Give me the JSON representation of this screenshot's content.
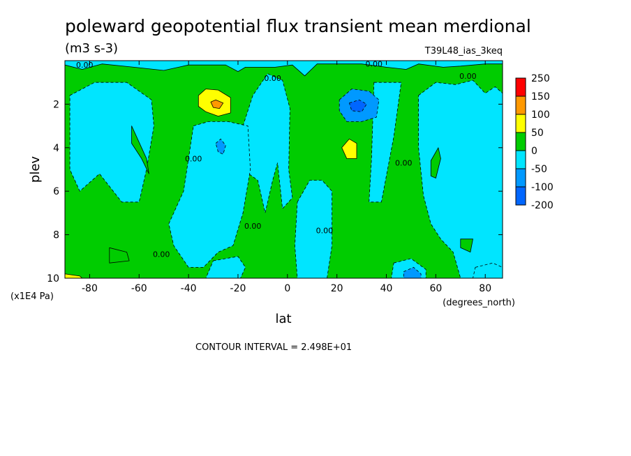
{
  "chart_data": {
    "type": "heatmap",
    "title": "poleward geopotential flux transient mean merdional",
    "units": "(m3 s-3)",
    "dataset": "T39L48_ias_3keq",
    "xlabel": "lat",
    "xunits": "(degrees_north)",
    "ylabel": "plev",
    "yunits": "(x1E4 Pa)",
    "xlim": [
      -90,
      87
    ],
    "ylim": [
      10,
      0
    ],
    "xticks": [
      -80,
      -60,
      -40,
      -20,
      0,
      20,
      40,
      60,
      80
    ],
    "yticks": [
      2,
      4,
      6,
      8,
      10
    ],
    "contour_interval": "CONTOUR INTERVAL = 2.498E+01",
    "contour_label": "0.00",
    "colorbar": {
      "labels": [
        "250",
        "150",
        "100",
        "50",
        "0",
        "-50",
        "-100",
        "-200"
      ],
      "colors": [
        "#ff0000",
        "#ff9900",
        "#ffff00",
        "#00cc00",
        "#00e5ff",
        "#0099ff",
        "#0066ff"
      ]
    },
    "background_level": "-50 to 0",
    "regions": [
      {
        "level": "0 to 50",
        "polygon": [
          [
            -90,
            0.2
          ],
          [
            -83,
            0.4
          ],
          [
            -75,
            0.15
          ],
          [
            -62,
            0.3
          ],
          [
            -50,
            0.45
          ],
          [
            -40,
            0.2
          ],
          [
            -25,
            0.2
          ],
          [
            -20,
            0.5
          ],
          [
            -17,
            0.3
          ],
          [
            -5,
            0.3
          ],
          [
            2,
            0.2
          ],
          [
            7,
            0.7
          ],
          [
            12,
            0.15
          ],
          [
            30,
            0.15
          ],
          [
            40,
            0.3
          ],
          [
            48,
            0.4
          ],
          [
            53,
            0.15
          ],
          [
            63,
            0.3
          ],
          [
            70,
            0.25
          ],
          [
            80,
            0.15
          ],
          [
            87,
            0.15
          ],
          [
            87,
            10
          ],
          [
            -90,
            10
          ]
        ]
      },
      {
        "level": "-50 to 0",
        "polygon": [
          [
            -88,
            1.6
          ],
          [
            -78,
            1.0
          ],
          [
            -65,
            1.0
          ],
          [
            -55,
            1.8
          ],
          [
            -54,
            3.0
          ],
          [
            -57,
            5.0
          ],
          [
            -60,
            6.5
          ],
          [
            -67,
            6.5
          ],
          [
            -76,
            5.2
          ],
          [
            -84,
            6.0
          ],
          [
            -88,
            5.0
          ]
        ]
      },
      {
        "level": "-50 to 0",
        "polygon": [
          [
            -18,
            3.0
          ],
          [
            -14,
            1.6
          ],
          [
            -8,
            0.6
          ],
          [
            -2,
            0.9
          ],
          [
            1,
            2.2
          ],
          [
            0.5,
            5.0
          ],
          [
            2,
            6.3
          ],
          [
            -2,
            6.8
          ],
          [
            -4,
            4.7
          ],
          [
            -6,
            5.5
          ],
          [
            -9,
            7.0
          ],
          [
            -12,
            5.5
          ],
          [
            -18,
            5.0
          ]
        ]
      },
      {
        "level": "-50 to 0",
        "polygon": [
          [
            -38,
            3.0
          ],
          [
            -32,
            2.8
          ],
          [
            -24,
            2.8
          ],
          [
            -16,
            3.0
          ],
          [
            -15,
            5.0
          ],
          [
            -18,
            7.0
          ],
          [
            -22,
            8.5
          ],
          [
            -28,
            8.8
          ],
          [
            -34,
            9.5
          ],
          [
            -40,
            9.5
          ],
          [
            -46,
            8.5
          ],
          [
            -48,
            7.5
          ],
          [
            -42,
            6.0
          ],
          [
            -40,
            4.5
          ]
        ]
      },
      {
        "level": "-50 to 0",
        "polygon": [
          [
            4,
            6.5
          ],
          [
            9,
            5.5
          ],
          [
            14,
            5.5
          ],
          [
            18,
            6.0
          ],
          [
            18,
            8.5
          ],
          [
            16,
            10
          ],
          [
            4,
            10
          ],
          [
            3,
            8.5
          ]
        ]
      },
      {
        "level": "-50 to 0",
        "polygon": [
          [
            35,
            1.0
          ],
          [
            46,
            1.0
          ],
          [
            43,
            3.5
          ],
          [
            38,
            6.5
          ],
          [
            33,
            6.5
          ],
          [
            34,
            4.5
          ]
        ]
      },
      {
        "level": "-50 to 0",
        "polygon": [
          [
            53,
            1.6
          ],
          [
            60,
            1.0
          ],
          [
            68,
            1.1
          ],
          [
            75,
            0.9
          ],
          [
            80,
            1.5
          ],
          [
            84,
            1.2
          ],
          [
            87,
            1.5
          ],
          [
            87,
            10
          ],
          [
            70,
            10
          ],
          [
            67,
            8.8
          ],
          [
            62,
            8.2
          ],
          [
            58,
            7.5
          ],
          [
            55,
            6.2
          ],
          [
            53,
            4.0
          ]
        ]
      },
      {
        "level": "-50 to 0",
        "polygon": [
          [
            -30,
            9.2
          ],
          [
            -20,
            9.0
          ],
          [
            -17,
            9.5
          ],
          [
            -19,
            10
          ],
          [
            -33,
            10
          ]
        ]
      },
      {
        "level": "-50 to 0",
        "polygon": [
          [
            43,
            9.3
          ],
          [
            50,
            9.1
          ],
          [
            56,
            9.6
          ],
          [
            56,
            10
          ],
          [
            42,
            10
          ]
        ]
      },
      {
        "level": "-50 to 0",
        "polygon": [
          [
            76,
            9.5
          ],
          [
            83,
            9.3
          ],
          [
            87,
            9.5
          ],
          [
            87,
            10
          ],
          [
            75,
            10
          ]
        ]
      },
      {
        "level": "0 to 50",
        "polygon": [
          [
            -63,
            3.0
          ],
          [
            -57,
            4.5
          ],
          [
            -56,
            5.2
          ],
          [
            -59,
            4.5
          ],
          [
            -63,
            3.8
          ]
        ]
      },
      {
        "level": "0 to 50",
        "polygon": [
          [
            -72,
            8.6
          ],
          [
            -65,
            8.8
          ],
          [
            -64,
            9.2
          ],
          [
            -72,
            9.3
          ]
        ]
      },
      {
        "level": "0 to 50",
        "polygon": [
          [
            70,
            8.2
          ],
          [
            75,
            8.2
          ],
          [
            74,
            8.8
          ],
          [
            70,
            8.6
          ]
        ]
      },
      {
        "level": "0 to 50",
        "polygon": [
          [
            58,
            4.6
          ],
          [
            61,
            4.0
          ],
          [
            62,
            4.5
          ],
          [
            60,
            5.4
          ],
          [
            58,
            5.3
          ]
        ]
      },
      {
        "level": "50 to 100",
        "polygon": [
          [
            -36,
            1.6
          ],
          [
            -33,
            1.3
          ],
          [
            -28,
            1.35
          ],
          [
            -23,
            1.7
          ],
          [
            -23,
            2.4
          ],
          [
            -28,
            2.55
          ],
          [
            -33,
            2.35
          ],
          [
            -36,
            2.1
          ]
        ]
      },
      {
        "level": "100 to 150",
        "polygon": [
          [
            -31,
            1.9
          ],
          [
            -29,
            1.8
          ],
          [
            -26,
            1.95
          ],
          [
            -27.5,
            2.2
          ],
          [
            -30,
            2.15
          ]
        ]
      },
      {
        "level": "50 to 100",
        "polygon": [
          [
            22,
            4.0
          ],
          [
            25,
            3.6
          ],
          [
            28,
            3.8
          ],
          [
            28,
            4.5
          ],
          [
            24,
            4.5
          ]
        ]
      },
      {
        "level": "50 to 100",
        "polygon": [
          [
            -90,
            9.8
          ],
          [
            -84,
            9.9
          ],
          [
            -83,
            10
          ],
          [
            -90,
            10
          ]
        ]
      },
      {
        "level": "-100 to -50",
        "polygon": [
          [
            21,
            1.8
          ],
          [
            26,
            1.3
          ],
          [
            33,
            1.4
          ],
          [
            37,
            1.8
          ],
          [
            36,
            2.6
          ],
          [
            30,
            2.8
          ],
          [
            24,
            2.8
          ],
          [
            21,
            2.3
          ]
        ]
      },
      {
        "level": "-200 to -100",
        "polygon": [
          [
            25,
            1.95
          ],
          [
            29,
            1.8
          ],
          [
            32,
            2.0
          ],
          [
            30,
            2.35
          ],
          [
            26,
            2.3
          ]
        ]
      },
      {
        "level": "-100 to -50",
        "polygon": [
          [
            -29,
            3.8
          ],
          [
            -27,
            3.6
          ],
          [
            -25,
            3.9
          ],
          [
            -26,
            4.3
          ],
          [
            -28,
            4.2
          ]
        ]
      },
      {
        "level": "-100 to -50",
        "polygon": [
          [
            47,
            9.7
          ],
          [
            51,
            9.5
          ],
          [
            54,
            9.8
          ],
          [
            54,
            10
          ],
          [
            47,
            10
          ]
        ]
      }
    ],
    "contour_labels": [
      {
        "x": -82,
        "y": 0.2
      },
      {
        "x": -6,
        "y": 0.8
      },
      {
        "x": 35,
        "y": 0.15
      },
      {
        "x": 73,
        "y": 0.7
      },
      {
        "x": -38,
        "y": 4.5
      },
      {
        "x": 47,
        "y": 4.7
      },
      {
        "x": 15,
        "y": 7.8
      },
      {
        "x": -14,
        "y": 7.6
      },
      {
        "x": -51,
        "y": 8.9
      }
    ]
  }
}
